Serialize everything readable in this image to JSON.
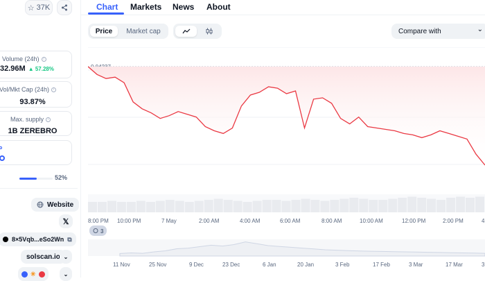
{
  "left": {
    "star_count": "37K",
    "volume": {
      "label": "Volume (24h)",
      "value": "32.96M",
      "change": "57.28%"
    },
    "vol_mkt": {
      "label": "Vol/Mkt Cap (24h)",
      "value": "93.87%"
    },
    "max_supply": {
      "label": "Max. supply",
      "value": "1B ZEREBRO"
    },
    "progress_pct": "52%",
    "progress_fraction": 0.52,
    "website_label": "Website",
    "contract": "8×5Vqb...eSo2Wn",
    "explorer": "solscan.io"
  },
  "tabs": [
    "Chart",
    "Markets",
    "News",
    "About"
  ],
  "toggle": {
    "price": "Price",
    "market_cap": "Market cap"
  },
  "compare_label": "Compare with",
  "chart_data": {
    "type": "line",
    "price_label": "0.04237",
    "x_ticks": [
      "8:00 PM",
      "10:00 PM",
      "7 May",
      "2:00 AM",
      "4:00 AM",
      "6:00 AM",
      "8:00 AM",
      "10:00 AM",
      "12:00 PM",
      "2:00 PM",
      "4"
    ],
    "y": [
      0.04237,
      0.0418,
      0.0415,
      0.0416,
      0.0412,
      0.0398,
      0.0393,
      0.039,
      0.0386,
      0.0388,
      0.0391,
      0.0389,
      0.0387,
      0.038,
      0.0377,
      0.0375,
      0.0379,
      0.0395,
      0.0403,
      0.0405,
      0.0409,
      0.0408,
      0.0404,
      0.0406,
      0.0379,
      0.04,
      0.0401,
      0.0397,
      0.0386,
      0.0382,
      0.0387,
      0.038,
      0.0379,
      0.0378,
      0.0377,
      0.0375,
      0.0374,
      0.0372,
      0.0374,
      0.0377,
      0.0375,
      0.0373,
      0.0371,
      0.036,
      0.0352
    ],
    "events_badge": "3",
    "overview_ticks": [
      "11 Nov",
      "25 Nov",
      "9 Dec",
      "23 Dec",
      "6 Jan",
      "20 Jan",
      "3 Feb",
      "17 Feb",
      "3 Mar",
      "17 Mar",
      "3"
    ],
    "overview_y": [
      1.2,
      1.5,
      1.3,
      2.0,
      2.5,
      3.5,
      3.8,
      4.5,
      5.2,
      4.8,
      5.5,
      6.8,
      5.9,
      5.0,
      4.6,
      4.2,
      3.8,
      3.4,
      3.0,
      2.8,
      2.6,
      2.4,
      2.3,
      2.2,
      2.1,
      2.0,
      1.9,
      1.8,
      1.7,
      1.6,
      1.5,
      1.4,
      1.3
    ],
    "colors": {
      "line": "#ea3943",
      "fill_top": "#fde6e7",
      "volume": "#e9ebef",
      "overview": "#cfd6e4"
    }
  }
}
